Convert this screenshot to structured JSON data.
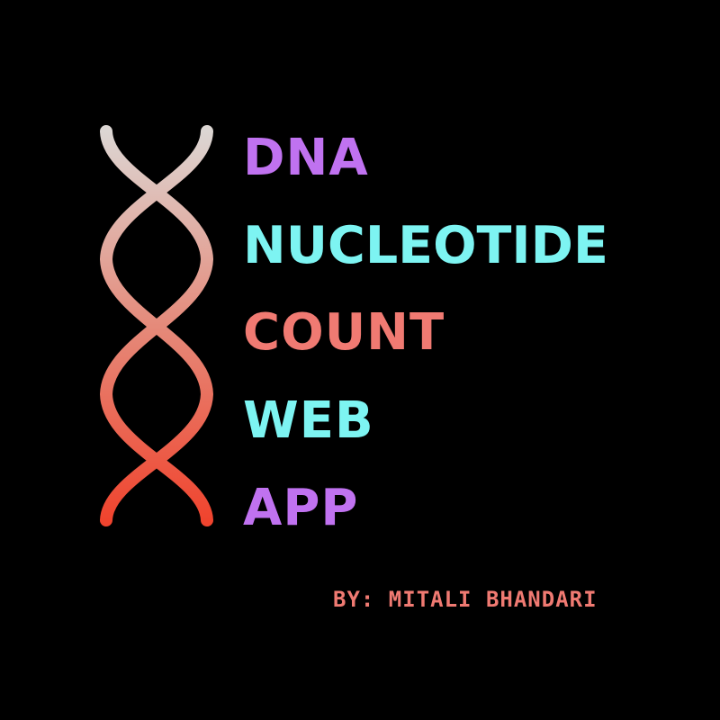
{
  "title_lines": [
    {
      "text": "DNA",
      "color": "#c072f0"
    },
    {
      "text": "NUCLEOTIDE",
      "color": "#7df4f2"
    },
    {
      "text": "COUNT",
      "color": "#f07a72"
    },
    {
      "text": "WEB",
      "color": "#7df4f2"
    },
    {
      "text": "APP",
      "color": "#c072f0"
    }
  ],
  "byline": {
    "text": "BY: MITALI BHANDARI",
    "color": "#f07a72"
  },
  "logo": {
    "icon": "dna-helix-icon",
    "gradient_top": "#dcd6d3",
    "gradient_bottom": "#f0442e"
  },
  "background": "#000000"
}
